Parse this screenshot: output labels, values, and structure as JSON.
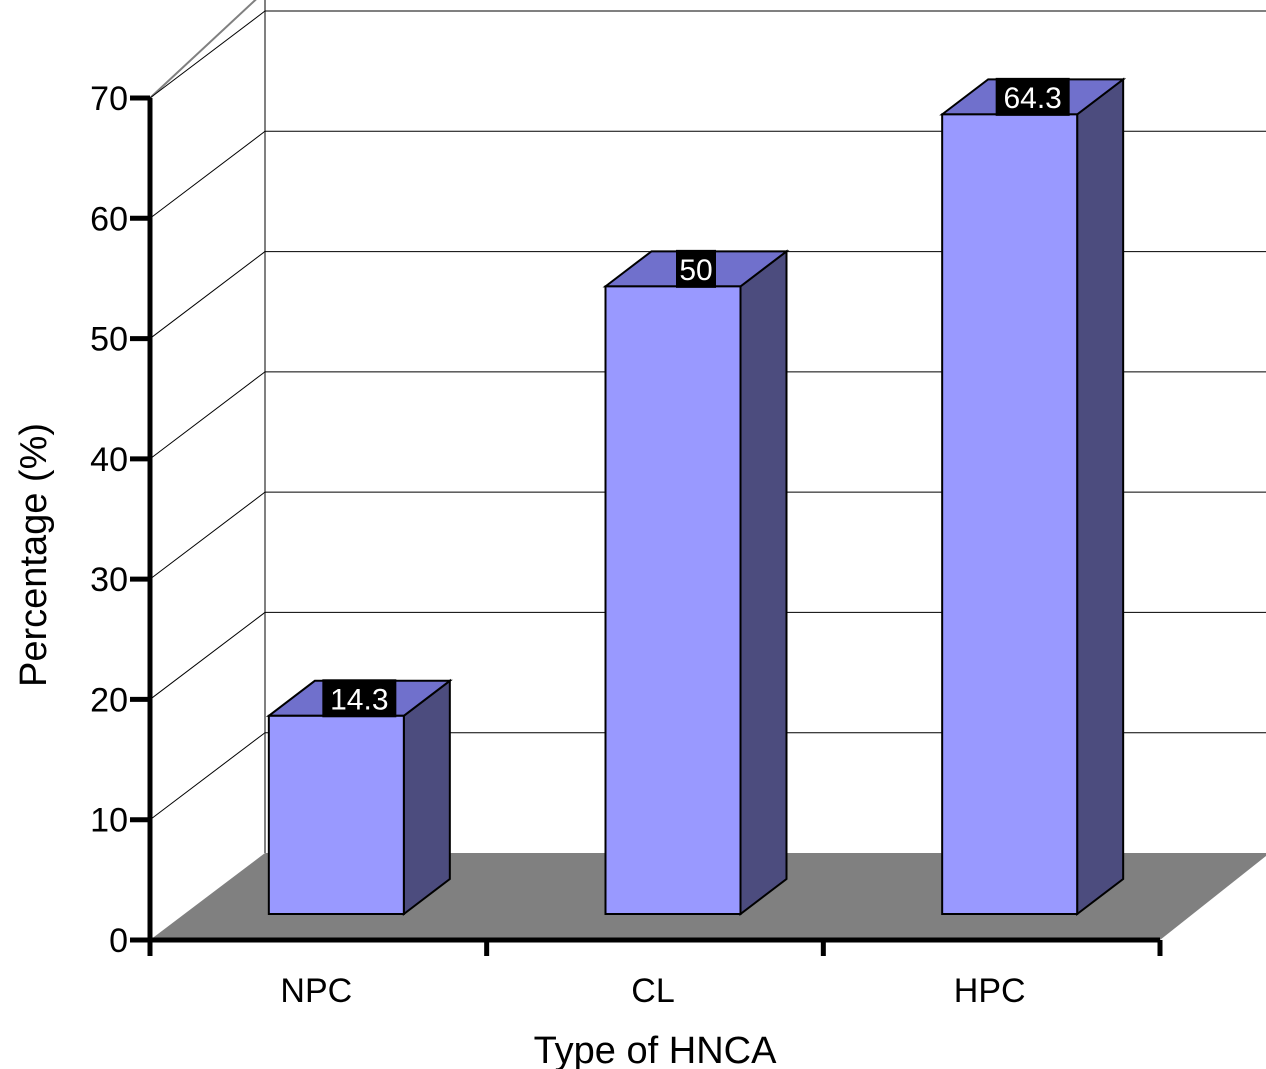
{
  "chart_data": {
    "type": "bar",
    "style": "3d-column",
    "categories": [
      "NPC",
      "CL",
      "HPC"
    ],
    "values": [
      14.3,
      50,
      64.3
    ],
    "data_labels": [
      "14.3",
      "50",
      "64.3"
    ],
    "title": "",
    "xlabel": "Type of HNCA",
    "ylabel": "Percentage (%)",
    "ylim": [
      0,
      70
    ],
    "yticks": [
      "0",
      "10",
      "20",
      "30",
      "40",
      "50",
      "60",
      "70"
    ],
    "grid": true,
    "legend": "none",
    "colors": {
      "bar_front": "#9999ff",
      "bar_top": "#7070cc",
      "bar_side": "#4c4c7e",
      "floor": "#808080",
      "label_bg": "#000000",
      "label_text": "#ffffff"
    }
  }
}
